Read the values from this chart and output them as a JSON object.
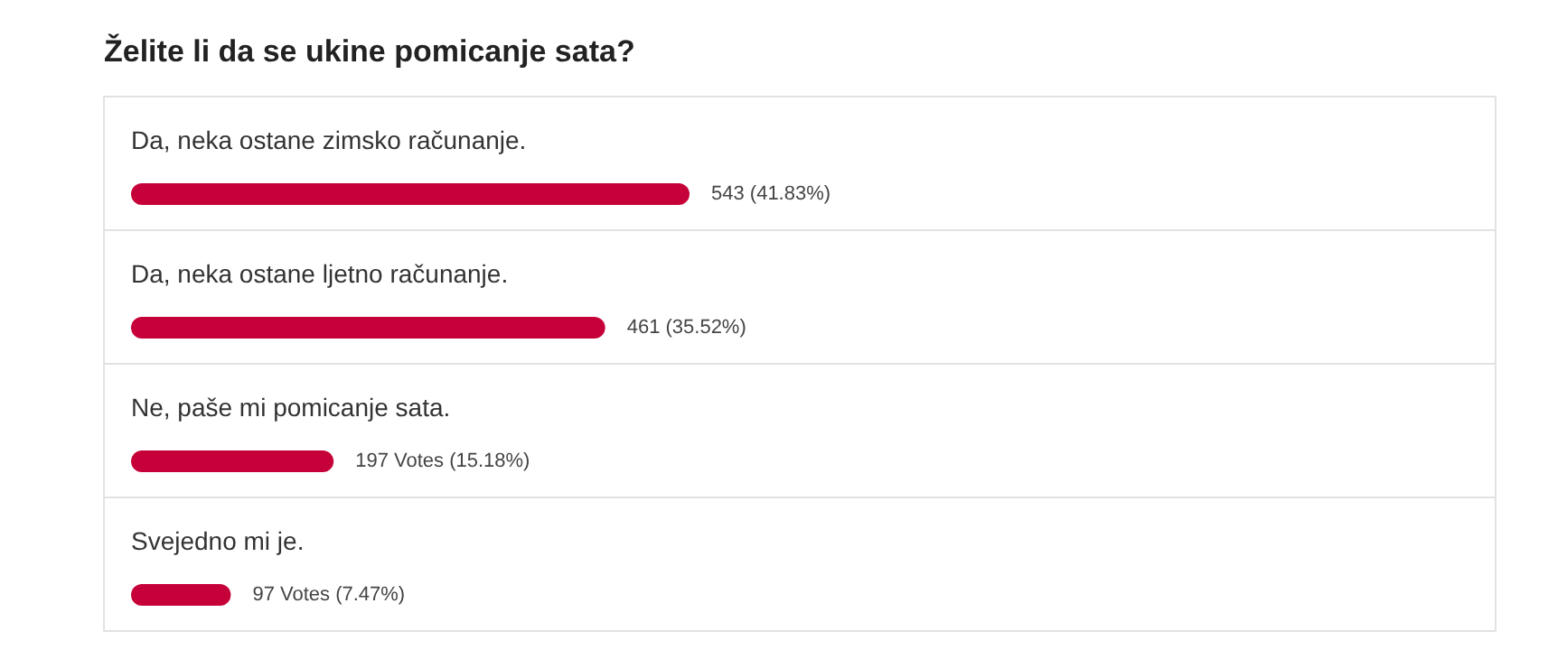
{
  "chart_data": {
    "type": "bar",
    "orientation": "horizontal",
    "title": "Želite li da se ukine pomicanje sata?",
    "categories": [
      "Da, neka ostane zimsko računanje.",
      "Da, neka ostane ljetno računanje.",
      "Ne, paše mi pomicanje sata.",
      "Svejedno mi je."
    ],
    "values": [
      543,
      461,
      197,
      97
    ],
    "color": "#c60038",
    "value_labels": [
      "543 (41.83%)",
      "461 (35.52%)",
      "197 Votes (15.18%)",
      "97 Votes (7.47%)"
    ]
  }
}
